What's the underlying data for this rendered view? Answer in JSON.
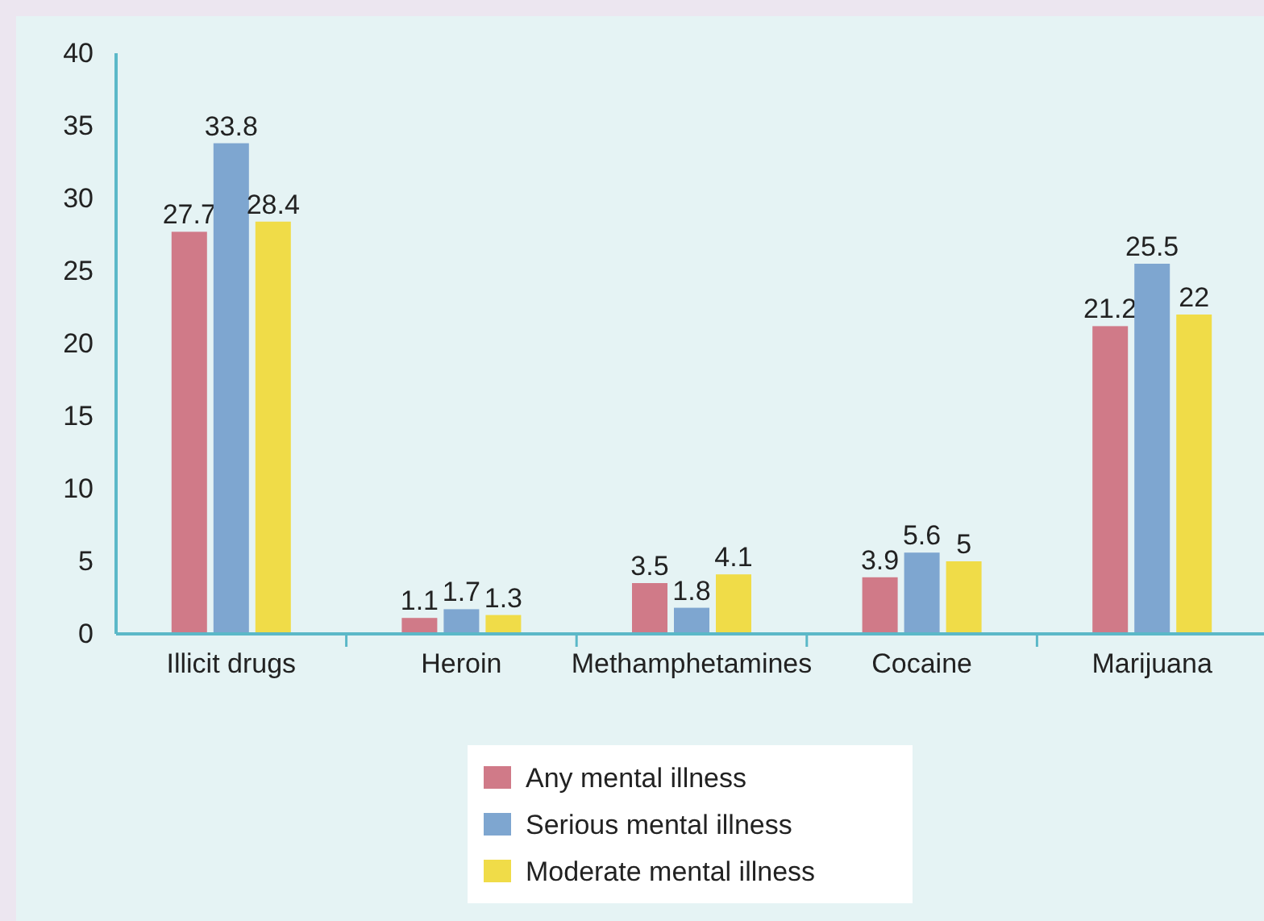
{
  "chart_data": {
    "type": "bar",
    "categories": [
      "Illicit drugs",
      "Heroin",
      "Methamphetamines",
      "Cocaine",
      "Marijuana"
    ],
    "series": [
      {
        "name": "Any mental illness",
        "color": "#d07a88",
        "values": [
          27.7,
          1.1,
          3.5,
          3.9,
          21.2
        ]
      },
      {
        "name": "Serious mental illness",
        "color": "#7ea6d0",
        "values": [
          33.8,
          1.7,
          1.8,
          5.6,
          25.5
        ]
      },
      {
        "name": "Moderate mental illness",
        "color": "#f0dc48",
        "values": [
          28.4,
          1.3,
          4.1,
          5,
          22
        ]
      }
    ],
    "ylim": [
      0,
      40
    ],
    "yticks": [
      0,
      5,
      10,
      15,
      20,
      25,
      30,
      35,
      40
    ],
    "grid": false,
    "legend": "bottom",
    "data_labels": true
  }
}
